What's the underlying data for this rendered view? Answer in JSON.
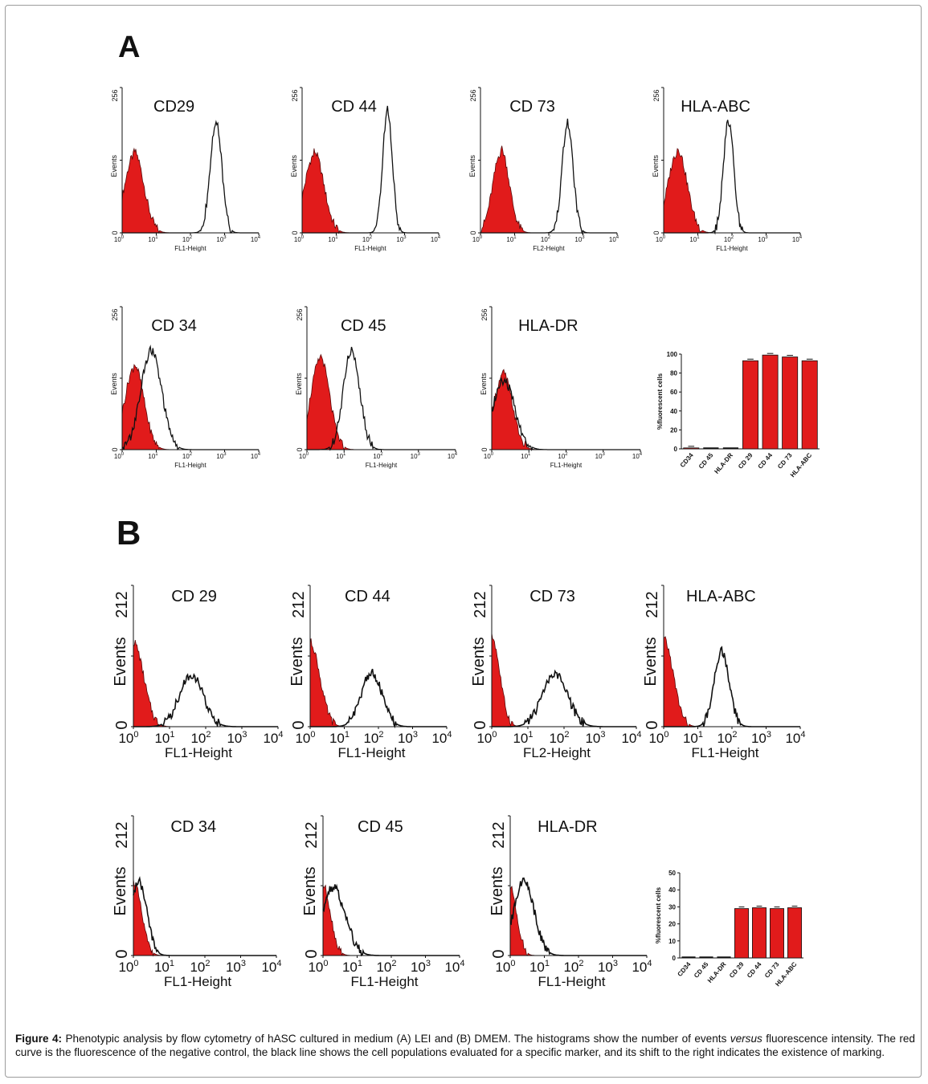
{
  "panels": [
    {
      "letter": "A",
      "y_max": "256",
      "y_zero": "0",
      "y_label": "Events",
      "histograms": [
        {
          "marker": "CD29",
          "x_label": "FL1-Height"
        },
        {
          "marker": "CD 44",
          "x_label": "FL1-Height"
        },
        {
          "marker": "CD 73",
          "x_label": "FL2-Height"
        },
        {
          "marker": "HLA-ABC",
          "x_label": "FL1-Height"
        },
        {
          "marker": "CD 34",
          "x_label": "FL1-Height"
        },
        {
          "marker": "CD 45",
          "x_label": "FL1-Height"
        },
        {
          "marker": "HLA-DR",
          "x_label": "FL1-Height"
        }
      ]
    },
    {
      "letter": "B",
      "y_max": "212",
      "y_zero": "0",
      "y_label": "Events",
      "histograms": [
        {
          "marker": "CD 29",
          "x_label": "FL1-Height"
        },
        {
          "marker": "CD 44",
          "x_label": "FL1-Height"
        },
        {
          "marker": "CD 73",
          "x_label": "FL2-Height"
        },
        {
          "marker": "HLA-ABC",
          "x_label": "FL1-Height"
        },
        {
          "marker": "CD 34",
          "x_label": "FL1-Height"
        },
        {
          "marker": "CD  45",
          "x_label": "FL1-Height"
        },
        {
          "marker": "HLA-DR",
          "x_label": "FL1-Height"
        }
      ]
    }
  ],
  "x_tick_exponents": [
    "0",
    "1",
    "2",
    "3",
    "4"
  ],
  "x_tick_base": "10",
  "colors": {
    "negative_control": "#e11b1b",
    "marker_line": "#111111",
    "bar": "#e11b1b"
  },
  "chart_data": [
    {
      "type": "bar",
      "panel": "A",
      "ylabel": "%fluorescent cells",
      "categories": [
        "CD34",
        "CD 45",
        "HLA-DR",
        "CD 29",
        "CD 44",
        "CD 73",
        "HLA-ABC"
      ],
      "values": [
        1,
        0,
        0,
        93,
        99,
        97,
        93
      ],
      "ylim": [
        0,
        100
      ],
      "yticks": [
        "0",
        "20",
        "40",
        "60",
        "80",
        "100"
      ]
    },
    {
      "type": "bar",
      "panel": "B",
      "ylabel": "%fluorescent cells",
      "categories": [
        "CD34",
        "CD 45",
        "HLA-DR",
        "CD 29",
        "CD 44",
        "CD 73",
        "HLA-ABC"
      ],
      "values": [
        0,
        0,
        0,
        29,
        29.5,
        29,
        29.5
      ],
      "ylim": [
        0,
        50
      ],
      "yticks": [
        "0",
        "10",
        "20",
        "30",
        "40",
        "50"
      ]
    }
  ],
  "caption": {
    "label": "Figure 4:",
    "text_1": " Phenotypic analysis by flow cytometry of hASC cultured in medium (A) LEI and (B) DMEM. The histograms show the number of events ",
    "italic": "versus",
    "text_2": " fluorescence intensity. The red curve is the fluorescence of the negative control, the black line shows the cell populations evaluated for a specific marker, and its shift to the right indicates the existence of marking."
  }
}
